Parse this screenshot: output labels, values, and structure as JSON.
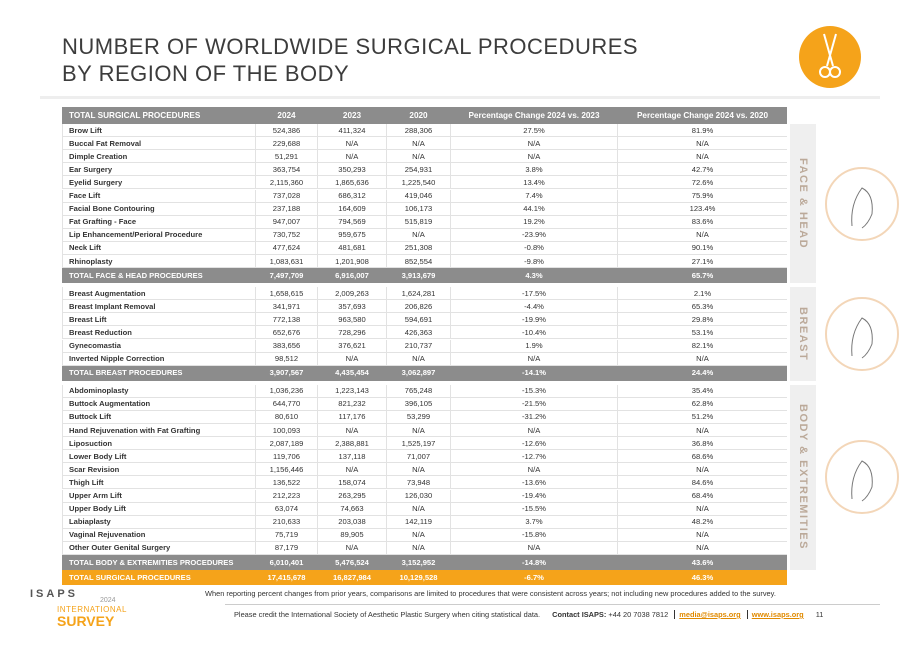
{
  "header": {
    "title_line1": "NUMBER OF WORLDWIDE SURGICAL PROCEDURES",
    "title_line2": "BY REGION OF THE BODY"
  },
  "table": {
    "columns": [
      "TOTAL SURGICAL PROCEDURES",
      "2024",
      "2023",
      "2020",
      "Percentage Change 2024 vs. 2023",
      "Percentage Change 2024 vs. 2020"
    ],
    "sections": [
      {
        "label": "FACE & HEAD",
        "rows": [
          [
            "Brow Lift",
            "524,386",
            "411,324",
            "288,306",
            "27.5%",
            "81.9%"
          ],
          [
            "Buccal Fat Removal",
            "229,688",
            "N/A",
            "N/A",
            "N/A",
            "N/A"
          ],
          [
            "Dimple Creation",
            "51,291",
            "N/A",
            "N/A",
            "N/A",
            "N/A"
          ],
          [
            "Ear Surgery",
            "363,754",
            "350,293",
            "254,931",
            "3.8%",
            "42.7%"
          ],
          [
            "Eyelid Surgery",
            "2,115,360",
            "1,865,636",
            "1,225,540",
            "13.4%",
            "72.6%"
          ],
          [
            "Face Lift",
            "737,028",
            "686,312",
            "419,046",
            "7.4%",
            "75.9%"
          ],
          [
            "Facial Bone Contouring",
            "237,188",
            "164,609",
            "106,173",
            "44.1%",
            "123.4%"
          ],
          [
            "Fat Grafting - Face",
            "947,007",
            "794,569",
            "515,819",
            "19.2%",
            "83.6%"
          ],
          [
            "Lip Enhancement/Perioral Procedure",
            "730,752",
            "959,675",
            "N/A",
            "-23.9%",
            "N/A"
          ],
          [
            "Neck Lift",
            "477,624",
            "481,681",
            "251,308",
            "-0.8%",
            "90.1%"
          ],
          [
            "Rhinoplasty",
            "1,083,631",
            "1,201,908",
            "852,554",
            "-9.8%",
            "27.1%"
          ]
        ],
        "total": [
          "TOTAL FACE & HEAD PROCEDURES",
          "7,497,709",
          "6,916,007",
          "3,913,679",
          "4.3%",
          "65.7%"
        ]
      },
      {
        "label": "BREAST",
        "rows": [
          [
            "Breast Augmentation",
            "1,658,615",
            "2,009,263",
            "1,624,281",
            "-17.5%",
            "2.1%"
          ],
          [
            "Breast Implant Removal",
            "341,971",
            "357,693",
            "206,826",
            "-4.4%",
            "65.3%"
          ],
          [
            "Breast Lift",
            "772,138",
            "963,580",
            "594,691",
            "-19.9%",
            "29.8%"
          ],
          [
            "Breast Reduction",
            "652,676",
            "728,296",
            "426,363",
            "-10.4%",
            "53.1%"
          ],
          [
            "Gynecomastia",
            "383,656",
            "376,621",
            "210,737",
            "1.9%",
            "82.1%"
          ],
          [
            "Inverted Nipple Correction",
            "98,512",
            "N/A",
            "N/A",
            "N/A",
            "N/A"
          ]
        ],
        "total": [
          "TOTAL BREAST PROCEDURES",
          "3,907,567",
          "4,435,454",
          "3,062,897",
          "-14.1%",
          "24.4%"
        ]
      },
      {
        "label": "BODY & EXTREMITIES",
        "rows": [
          [
            "Abdominoplasty",
            "1,036,236",
            "1,223,143",
            "765,248",
            "-15.3%",
            "35.4%"
          ],
          [
            "Buttock Augmentation",
            "644,770",
            "821,232",
            "396,105",
            "-21.5%",
            "62.8%"
          ],
          [
            "Buttock Lift",
            "80,610",
            "117,176",
            "53,299",
            "-31.2%",
            "51.2%"
          ],
          [
            "Hand Rejuvenation with Fat Grafting",
            "100,093",
            "N/A",
            "N/A",
            "N/A",
            "N/A"
          ],
          [
            "Liposuction",
            "2,087,189",
            "2,388,881",
            "1,525,197",
            "-12.6%",
            "36.8%"
          ],
          [
            "Lower Body Lift",
            "119,706",
            "137,118",
            "71,007",
            "-12.7%",
            "68.6%"
          ],
          [
            "Scar Revision",
            "1,156,446",
            "N/A",
            "N/A",
            "N/A",
            "N/A"
          ],
          [
            "Thigh Lift",
            "136,522",
            "158,074",
            "73,948",
            "-13.6%",
            "84.6%"
          ],
          [
            "Upper Arm Lift",
            "212,223",
            "263,295",
            "126,030",
            "-19.4%",
            "68.4%"
          ],
          [
            "Upper Body Lift",
            "63,074",
            "74,663",
            "N/A",
            "-15.5%",
            "N/A"
          ],
          [
            "Labiaplasty",
            "210,633",
            "203,038",
            "142,119",
            "3.7%",
            "48.2%"
          ],
          [
            "Vaginal Rejuvenation",
            "75,719",
            "89,905",
            "N/A",
            "-15.8%",
            "N/A"
          ],
          [
            "Other Outer Genital Surgery",
            "87,179",
            "N/A",
            "N/A",
            "N/A",
            "N/A"
          ]
        ],
        "total": [
          "TOTAL BODY & EXTREMITIES PROCEDURES",
          "6,010,401",
          "5,476,524",
          "3,152,952",
          "-14.8%",
          "43.6%"
        ]
      }
    ],
    "grand_total": [
      "TOTAL SURGICAL PROCEDURES",
      "17,415,678",
      "16,827,984",
      "10,129,528",
      "-6.7%",
      "46.3%"
    ]
  },
  "footnote": "When reporting percent changes from prior years, comparisons are limited to procedures that were consistent across years; not including new procedures added to the survey.",
  "footer": {
    "credit": "Please credit the International Society of Aesthetic Plastic Surgery when citing statistical data.",
    "contact_label": "Contact ISAPS:",
    "phone": "+44 20 7038 7812",
    "email": "media@isaps.org",
    "website": "www.isaps.org",
    "page": "11"
  },
  "logo": {
    "name": "ISAPS",
    "year": "2024",
    "line1": "INTERNATIONAL",
    "line2": "SURVEY"
  }
}
